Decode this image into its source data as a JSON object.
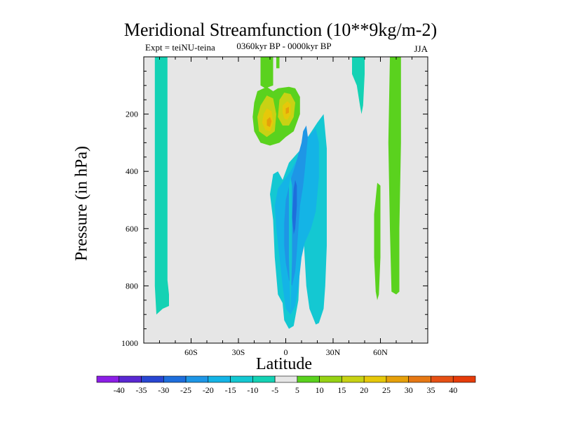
{
  "chart_data": {
    "type": "contour",
    "title": "Meridional Streamfunction (10**9kg/m-2)",
    "left_label": "Expt = teiNU-teina",
    "center_label": "0360kyr BP - 0000kyr BP",
    "right_label": "JJA",
    "xlabel": "Latitude",
    "ylabel": "Pressure (in hPa)",
    "xlim": [
      -90,
      90
    ],
    "ylim": [
      1000,
      0
    ],
    "x_ticks": [
      {
        "value": -60,
        "label": "60S"
      },
      {
        "value": -30,
        "label": "30S"
      },
      {
        "value": 0,
        "label": "0"
      },
      {
        "value": 30,
        "label": "30N"
      },
      {
        "value": 60,
        "label": "60N"
      }
    ],
    "y_ticks": [
      {
        "value": 200,
        "label": "200"
      },
      {
        "value": 400,
        "label": "400"
      },
      {
        "value": 600,
        "label": "600"
      },
      {
        "value": 800,
        "label": "800"
      },
      {
        "value": 1000,
        "label": "1000"
      }
    ],
    "background_color": "#e6e6e6",
    "colorbar": {
      "bins": [
        {
          "label": "-40",
          "color": "#8c1ee6"
        },
        {
          "label": "-35",
          "color": "#5a28d2"
        },
        {
          "label": "-30",
          "color": "#2846d2"
        },
        {
          "label": "-25",
          "color": "#1e6edc"
        },
        {
          "label": "-20",
          "color": "#1e96e6"
        },
        {
          "label": "-15",
          "color": "#14b4e6"
        },
        {
          "label": "-10",
          "color": "#14c8d2"
        },
        {
          "label": "-5",
          "color": "#14d2b4"
        },
        {
          "label": "5",
          "color": "#e6e6e6"
        },
        {
          "label": "10",
          "color": "#5ad21e"
        },
        {
          "label": "15",
          "color": "#96d214"
        },
        {
          "label": "20",
          "color": "#c8d214"
        },
        {
          "label": "25",
          "color": "#e6c80a"
        },
        {
          "label": "30",
          "color": "#e6a00a"
        },
        {
          "label": "35",
          "color": "#e67814"
        },
        {
          "label": "40",
          "color": "#e65014"
        }
      ],
      "end_color": "#e63c0a"
    },
    "regions": [
      {
        "name": "cyan-column-south",
        "color": "#14d2b4",
        "points": [
          [
            -83,
            0
          ],
          [
            -75,
            0
          ],
          [
            -75,
            780
          ],
          [
            -74,
            830
          ],
          [
            -74,
            870
          ],
          [
            -78,
            880
          ],
          [
            -82,
            900
          ],
          [
            -83,
            800
          ]
        ]
      },
      {
        "name": "teal-blob-equator",
        "color": "#14c8d2",
        "points": [
          [
            -2,
            430
          ],
          [
            2,
            370
          ],
          [
            10,
            320
          ],
          [
            14,
            280
          ],
          [
            20,
            230
          ],
          [
            24,
            200
          ],
          [
            26,
            320
          ],
          [
            26,
            660
          ],
          [
            25,
            800
          ],
          [
            24,
            880
          ],
          [
            21,
            930
          ],
          [
            19,
            935
          ],
          [
            15,
            880
          ],
          [
            13,
            800
          ],
          [
            12,
            700
          ],
          [
            11,
            600
          ],
          [
            9,
            720
          ],
          [
            8,
            850
          ],
          [
            5,
            940
          ],
          [
            2,
            950
          ],
          [
            -1,
            920
          ],
          [
            -2,
            860
          ],
          [
            -5,
            830
          ],
          [
            -7,
            700
          ],
          [
            -8,
            570
          ],
          [
            -10,
            480
          ],
          [
            -8,
            410
          ],
          [
            -5,
            400
          ]
        ]
      },
      {
        "name": "blue-core",
        "color": "#14b4e6",
        "points": [
          [
            -5,
            460
          ],
          [
            3,
            400
          ],
          [
            9,
            340
          ],
          [
            14,
            280
          ],
          [
            19,
            250
          ],
          [
            21,
            300
          ],
          [
            21,
            420
          ],
          [
            19,
            540
          ],
          [
            16,
            600
          ],
          [
            12,
            650
          ],
          [
            10,
            700
          ],
          [
            8,
            800
          ],
          [
            6,
            870
          ],
          [
            3,
            900
          ],
          [
            0,
            880
          ],
          [
            -2,
            800
          ],
          [
            -4,
            700
          ],
          [
            -6,
            600
          ],
          [
            -7,
            520
          ]
        ]
      },
      {
        "name": "deep-blue-core",
        "color": "#1e96e6",
        "points": [
          [
            3,
            430
          ],
          [
            6,
            380
          ],
          [
            8,
            340
          ],
          [
            10,
            300
          ],
          [
            11,
            260
          ],
          [
            13,
            240
          ],
          [
            14,
            280
          ],
          [
            13,
            340
          ],
          [
            12,
            400
          ],
          [
            11,
            450
          ],
          [
            9,
            520
          ],
          [
            8,
            600
          ],
          [
            7,
            680
          ],
          [
            6,
            750
          ],
          [
            4,
            800
          ],
          [
            2,
            780
          ],
          [
            0,
            720
          ],
          [
            -1,
            660
          ],
          [
            -1,
            580
          ],
          [
            0,
            500
          ]
        ]
      },
      {
        "name": "darker-blue-core",
        "color": "#1e6edc",
        "points": [
          [
            5,
            460
          ],
          [
            6,
            430
          ],
          [
            7,
            450
          ],
          [
            7,
            520
          ],
          [
            6,
            600
          ],
          [
            5,
            620
          ],
          [
            4,
            560
          ]
        ]
      },
      {
        "name": "cyan-column-45n",
        "color": "#14d2b4",
        "points": [
          [
            42,
            0
          ],
          [
            50,
            0
          ],
          [
            50,
            60
          ],
          [
            49,
            170
          ],
          [
            48,
            200
          ],
          [
            47,
            170
          ],
          [
            45,
            100
          ],
          [
            42,
            60
          ]
        ]
      },
      {
        "name": "cyan-thin-strip",
        "color": "#14c8d2",
        "points": [
          [
            2,
            450
          ],
          [
            3,
            420
          ],
          [
            4,
            450
          ],
          [
            4,
            700
          ],
          [
            3,
            900
          ],
          [
            2,
            700
          ]
        ]
      },
      {
        "name": "green-top-left",
        "color": "#5ad21e",
        "points": [
          [
            -16,
            0
          ],
          [
            -8,
            0
          ],
          [
            -8,
            100
          ],
          [
            -13,
            110
          ],
          [
            -16,
            100
          ]
        ]
      },
      {
        "name": "green-top-right",
        "color": "#5ad21e",
        "points": [
          [
            -6,
            0
          ],
          [
            -4,
            0
          ],
          [
            -4,
            40
          ],
          [
            -6,
            40
          ]
        ]
      },
      {
        "name": "green-column-65n",
        "color": "#5ad21e",
        "points": [
          [
            66,
            0
          ],
          [
            73,
            0
          ],
          [
            73,
            300
          ],
          [
            72,
            600
          ],
          [
            72,
            820
          ],
          [
            70,
            830
          ],
          [
            67,
            820
          ],
          [
            66,
            600
          ],
          [
            65,
            300
          ]
        ]
      },
      {
        "name": "green-column-60n",
        "color": "#5ad21e",
        "points": [
          [
            58,
            440
          ],
          [
            60,
            450
          ],
          [
            60,
            700
          ],
          [
            59,
            830
          ],
          [
            58,
            850
          ],
          [
            57,
            820
          ],
          [
            56,
            700
          ],
          [
            56,
            550
          ]
        ]
      },
      {
        "name": "green-double-blob",
        "color": "#5ad21e",
        "points": [
          [
            -20,
            160
          ],
          [
            -18,
            120
          ],
          [
            -12,
            105
          ],
          [
            -8,
            120
          ],
          [
            -5,
            110
          ],
          [
            2,
            105
          ],
          [
            6,
            110
          ],
          [
            9,
            140
          ],
          [
            9,
            200
          ],
          [
            5,
            260
          ],
          [
            0,
            280
          ],
          [
            -4,
            300
          ],
          [
            -10,
            310
          ],
          [
            -16,
            300
          ],
          [
            -20,
            260
          ],
          [
            -21,
            210
          ]
        ]
      },
      {
        "name": "yellow-blob-left",
        "color": "#c8d214",
        "points": [
          [
            -16,
            170
          ],
          [
            -12,
            135
          ],
          [
            -8,
            145
          ],
          [
            -6,
            200
          ],
          [
            -7,
            260
          ],
          [
            -12,
            280
          ],
          [
            -17,
            260
          ],
          [
            -18,
            210
          ]
        ]
      },
      {
        "name": "yellow-blob-right",
        "color": "#c8d214",
        "points": [
          [
            -4,
            150
          ],
          [
            -1,
            125
          ],
          [
            3,
            130
          ],
          [
            6,
            160
          ],
          [
            5,
            210
          ],
          [
            2,
            240
          ],
          [
            -2,
            240
          ],
          [
            -5,
            210
          ]
        ]
      },
      {
        "name": "gold-blob-left",
        "color": "#e6c80a",
        "points": [
          [
            -14,
            200
          ],
          [
            -12,
            180
          ],
          [
            -9,
            190
          ],
          [
            -8,
            230
          ],
          [
            -10,
            260
          ],
          [
            -13,
            255
          ],
          [
            -15,
            230
          ]
        ]
      },
      {
        "name": "gold-blob-right",
        "color": "#e6c80a",
        "points": [
          [
            -2,
            170
          ],
          [
            1,
            155
          ],
          [
            3,
            165
          ],
          [
            3,
            200
          ],
          [
            1,
            220
          ],
          [
            -1,
            215
          ],
          [
            -2,
            195
          ]
        ]
      },
      {
        "name": "orange-blob-left",
        "color": "#e6a00a",
        "points": [
          [
            -12,
            220
          ],
          [
            -10,
            210
          ],
          [
            -9,
            225
          ],
          [
            -10,
            245
          ],
          [
            -12,
            240
          ]
        ]
      },
      {
        "name": "orange-blob-right",
        "color": "#e6a00a",
        "points": [
          [
            0,
            180
          ],
          [
            2,
            175
          ],
          [
            2,
            195
          ],
          [
            0,
            200
          ]
        ]
      }
    ]
  }
}
